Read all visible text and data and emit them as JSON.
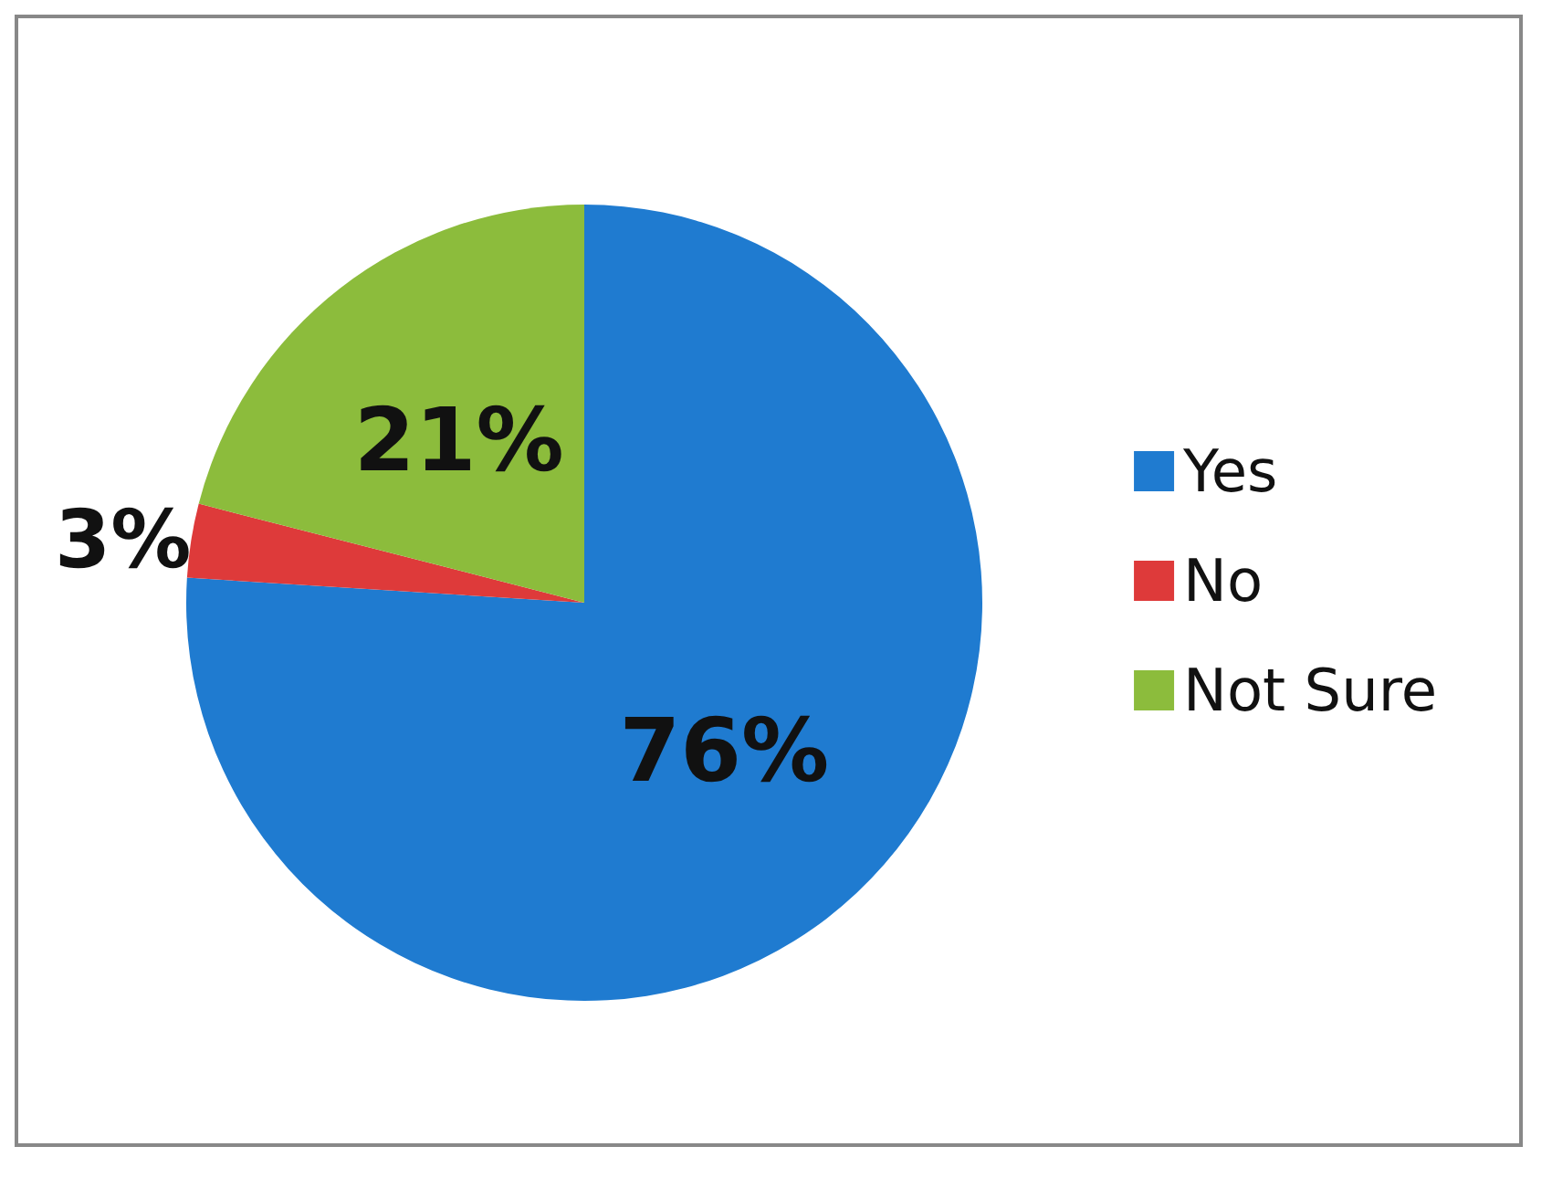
{
  "chart_data": {
    "type": "pie",
    "categories": [
      "Yes",
      "No",
      "Not Sure"
    ],
    "values": [
      76,
      3,
      21
    ],
    "colors": [
      "#1f7bd0",
      "#de3a3a",
      "#8cbc3c"
    ],
    "value_labels": [
      "76%",
      "3%",
      "21%"
    ],
    "legend": "right"
  }
}
